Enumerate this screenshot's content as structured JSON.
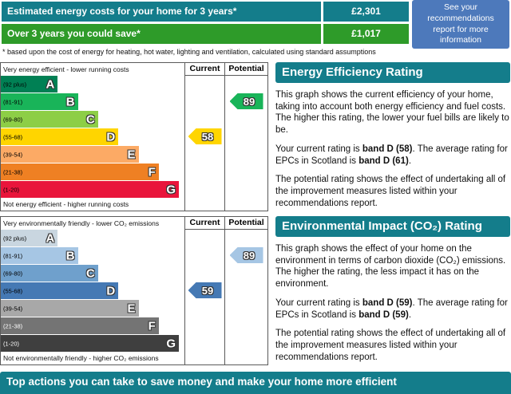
{
  "page": {
    "teal": "#147d8b",
    "green": "#2e9b29",
    "blue": "#4d79bb"
  },
  "costs": {
    "rows": [
      {
        "label": "Estimated energy costs for your home for 3 years*",
        "value": "£2,301",
        "bg": "#147d8b"
      },
      {
        "label": "Over 3 years you could save*",
        "value": "£1,017",
        "bg": "#2e9b29"
      }
    ],
    "recommendation": "See your recommendations report for more information",
    "footnote": "* based upon the cost of energy for heating, hot water, lighting and ventilation, calculated using standard assumptions"
  },
  "energy": {
    "title": "Energy Efficiency Rating",
    "top_label": "Very energy efficient - lower running costs",
    "bottom_label": "Not energy efficient - higher running costs",
    "col_current": "Current",
    "col_potential": "Potential",
    "bands": [
      {
        "letter": "A",
        "range": "(92 plus)",
        "color": "#008054",
        "width": "31%",
        "text": "#000000"
      },
      {
        "letter": "B",
        "range": "(81-91)",
        "color": "#19b459",
        "width": "42%",
        "text": "#000000"
      },
      {
        "letter": "C",
        "range": "(69-80)",
        "color": "#8dce46",
        "width": "53%",
        "text": "#000000"
      },
      {
        "letter": "D",
        "range": "(55-68)",
        "color": "#ffd500",
        "width": "64%",
        "text": "#000000"
      },
      {
        "letter": "E",
        "range": "(39-54)",
        "color": "#fcaa65",
        "width": "75%",
        "text": "#000000"
      },
      {
        "letter": "F",
        "range": "(21-38)",
        "color": "#ef8023",
        "width": "86%",
        "text": "#000000"
      },
      {
        "letter": "G",
        "range": "(1-20)",
        "color": "#e9153b",
        "width": "97%",
        "text": "#000000"
      }
    ],
    "current": {
      "value": "58",
      "row": 3,
      "color": "#ffd500"
    },
    "potential": {
      "value": "89",
      "row": 1,
      "color": "#19b459"
    },
    "p1": "This graph shows the current efficiency of your home, taking into account both energy efficiency and fuel costs. The higher this rating, the lower your fuel bills are likely to be.",
    "p2a": "Your current rating is ",
    "p2b": "band D (58)",
    "p2c": ". The average rating for EPCs in Scotland is ",
    "p2d": "band D (61)",
    "p2e": ".",
    "p3": "The potential rating shows the effect of undertaking all of the improvement measures listed within your recommendations report."
  },
  "environment": {
    "title": "Environmental Impact (CO₂) Rating",
    "top_label": "Very environmentally friendly - lower CO₂ emissions",
    "bottom_label": "Not environmentally friendly - higher CO₂ emissions",
    "col_current": "Current",
    "col_potential": "Potential",
    "bands": [
      {
        "letter": "A",
        "range": "(92 plus)",
        "color": "#c9d6e0",
        "width": "31%",
        "text": "#000000"
      },
      {
        "letter": "B",
        "range": "(81-91)",
        "color": "#a6c6e4",
        "width": "42%",
        "text": "#000000"
      },
      {
        "letter": "C",
        "range": "(69-80)",
        "color": "#6fa0cc",
        "width": "53%",
        "text": "#000000"
      },
      {
        "letter": "D",
        "range": "(55-68)",
        "color": "#4579b4",
        "width": "64%",
        "text": "#000000"
      },
      {
        "letter": "E",
        "range": "(39-54)",
        "color": "#a8a8a8",
        "width": "75%",
        "text": "#000000"
      },
      {
        "letter": "F",
        "range": "(21-38)",
        "color": "#747474",
        "width": "86%",
        "text": "#ffffff"
      },
      {
        "letter": "G",
        "range": "(1-20)",
        "color": "#3f3f3f",
        "width": "97%",
        "text": "#ffffff"
      }
    ],
    "current": {
      "value": "59",
      "row": 3,
      "color": "#4579b4"
    },
    "potential": {
      "value": "89",
      "row": 1,
      "color": "#a6c6e4"
    },
    "p1": "This graph shows the effect of your home on the environment in terms of carbon dioxide (CO₂) emissions. The higher the rating, the less impact it has on the environment.",
    "p2a": "Your current rating is ",
    "p2b": "band D (59)",
    "p2c": ". The average rating for EPCs in Scotland is ",
    "p2d": "band D (59)",
    "p2e": ".",
    "p3": "The potential rating shows the effect of undertaking all of the improvement measures listed within your recommendations report."
  },
  "footer": {
    "title": "Top actions you can take to save money and make your home more efficient"
  }
}
